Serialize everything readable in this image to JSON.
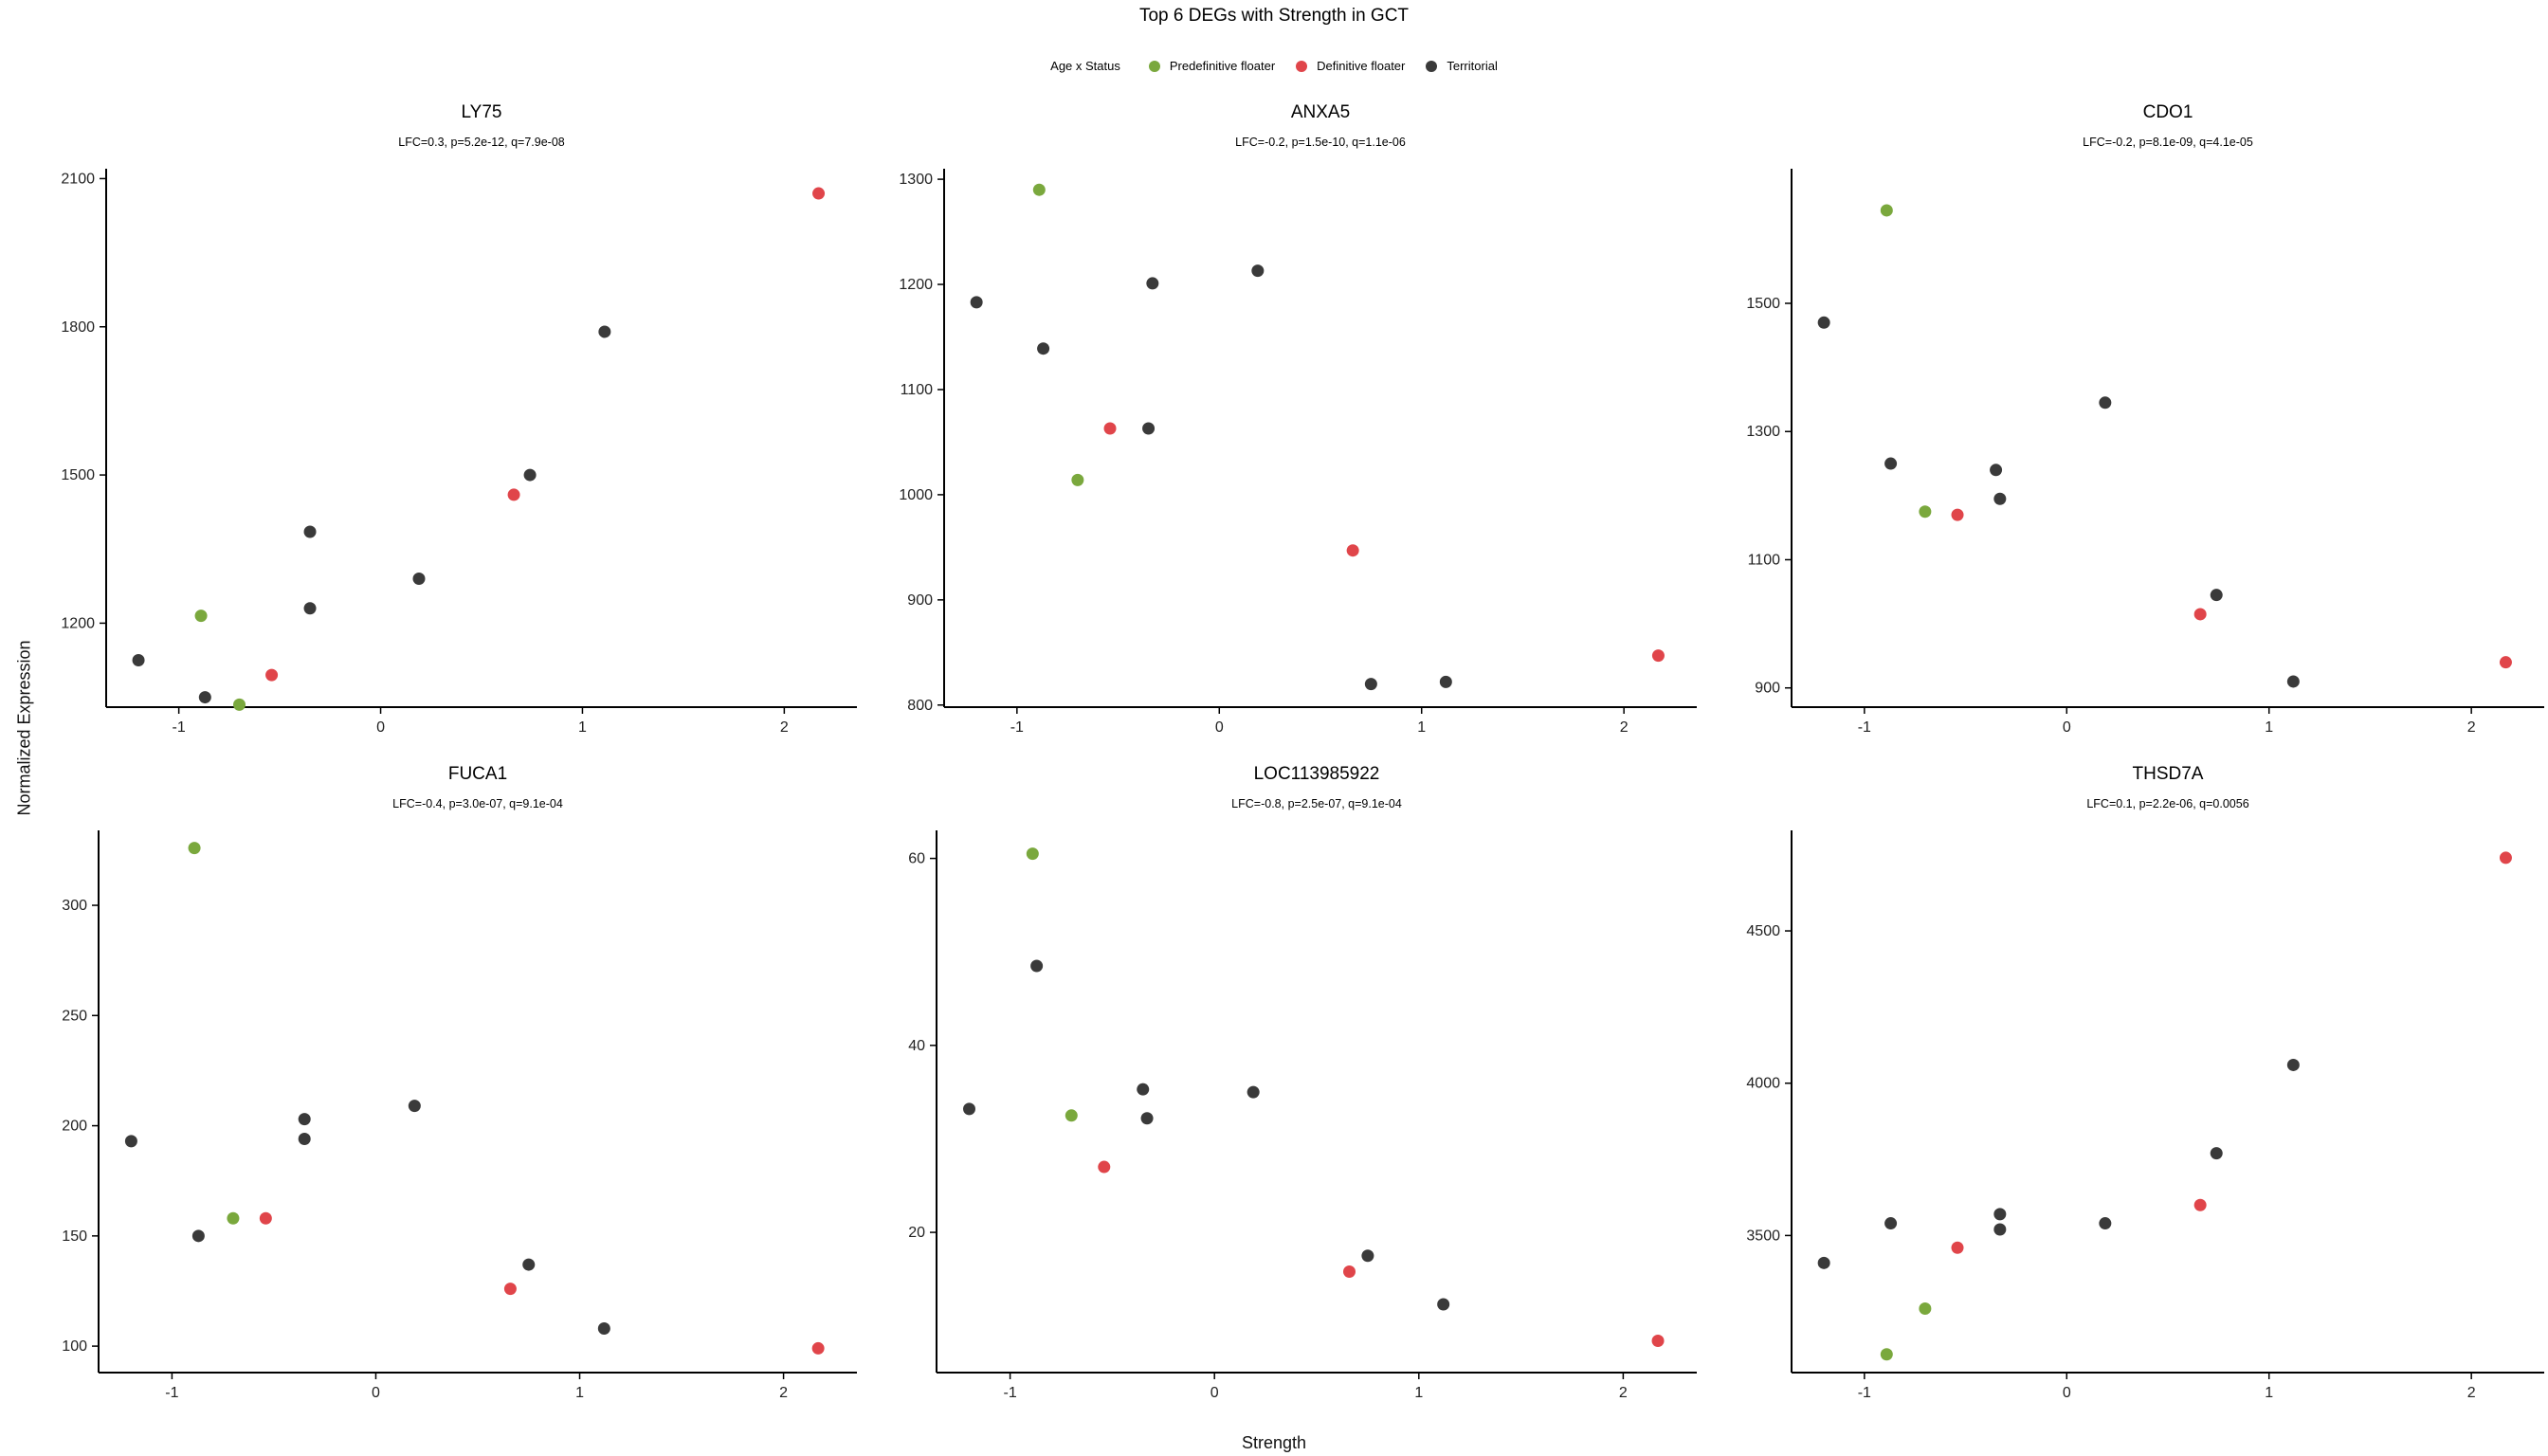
{
  "figure": {
    "title": "Top 6 DEGs with Strength in GCT",
    "xlabel": "Strength",
    "ylabel": "Normalized Expression"
  },
  "legend": {
    "title": "Age x Status",
    "items": [
      {
        "label": "Predefinitive floater",
        "color": "#7aa83d"
      },
      {
        "label": "Definitive floater",
        "color": "#e0454a"
      },
      {
        "label": "Territorial",
        "color": "#3a3a3a"
      }
    ]
  },
  "colors": {
    "Predefinitive floater": "#7aa83d",
    "Definitive floater": "#e0454a",
    "Territorial": "#3a3a3a"
  },
  "chart_data": [
    {
      "type": "scatter",
      "title": "LY75",
      "subtitle": "LFC=0.3, p=5.2e-12, q=7.9e-08",
      "xlim": [
        -1.36,
        2.36
      ],
      "ylim": [
        1030,
        2120
      ],
      "xticks": [
        -1,
        0,
        1,
        2
      ],
      "yticks": [
        1200,
        1500,
        1800,
        2100
      ],
      "points": [
        {
          "x": -1.2,
          "y": 1125,
          "group": "Territorial"
        },
        {
          "x": -0.89,
          "y": 1215,
          "group": "Predefinitive floater"
        },
        {
          "x": -0.87,
          "y": 1050,
          "group": "Territorial"
        },
        {
          "x": -0.7,
          "y": 1035,
          "group": "Predefinitive floater"
        },
        {
          "x": -0.54,
          "y": 1095,
          "group": "Definitive floater"
        },
        {
          "x": -0.35,
          "y": 1385,
          "group": "Territorial"
        },
        {
          "x": -0.35,
          "y": 1230,
          "group": "Territorial"
        },
        {
          "x": 0.19,
          "y": 1290,
          "group": "Territorial"
        },
        {
          "x": 0.66,
          "y": 1460,
          "group": "Definitive floater"
        },
        {
          "x": 0.74,
          "y": 1500,
          "group": "Territorial"
        },
        {
          "x": 1.11,
          "y": 1790,
          "group": "Territorial"
        },
        {
          "x": 2.17,
          "y": 2070,
          "group": "Definitive floater"
        }
      ]
    },
    {
      "type": "scatter",
      "title": "ANXA5",
      "subtitle": "LFC=-0.2, p=1.5e-10, q=1.1e-06",
      "xlim": [
        -1.36,
        2.36
      ],
      "ylim": [
        798,
        1310
      ],
      "xticks": [
        -1,
        0,
        1,
        2
      ],
      "yticks": [
        800,
        900,
        1000,
        1100,
        1200,
        1300
      ],
      "points": [
        {
          "x": -1.2,
          "y": 1183,
          "group": "Territorial"
        },
        {
          "x": -0.89,
          "y": 1290,
          "group": "Predefinitive floater"
        },
        {
          "x": -0.87,
          "y": 1139,
          "group": "Territorial"
        },
        {
          "x": -0.7,
          "y": 1014,
          "group": "Predefinitive floater"
        },
        {
          "x": -0.54,
          "y": 1063,
          "group": "Definitive floater"
        },
        {
          "x": -0.35,
          "y": 1063,
          "group": "Territorial"
        },
        {
          "x": -0.33,
          "y": 1201,
          "group": "Territorial"
        },
        {
          "x": 0.19,
          "y": 1213,
          "group": "Territorial"
        },
        {
          "x": 0.66,
          "y": 947,
          "group": "Definitive floater"
        },
        {
          "x": 0.75,
          "y": 820,
          "group": "Territorial"
        },
        {
          "x": 1.12,
          "y": 822,
          "group": "Territorial"
        },
        {
          "x": 2.17,
          "y": 847,
          "group": "Definitive floater"
        }
      ]
    },
    {
      "type": "scatter",
      "title": "CDO1",
      "subtitle": "LFC=-0.2, p=8.1e-09, q=4.1e-05",
      "xlim": [
        -1.36,
        2.36
      ],
      "ylim": [
        870,
        1710
      ],
      "xticks": [
        -1,
        0,
        1,
        2
      ],
      "yticks": [
        900,
        1100,
        1300,
        1500
      ],
      "points": [
        {
          "x": -1.2,
          "y": 1470,
          "group": "Territorial"
        },
        {
          "x": -0.89,
          "y": 1645,
          "group": "Predefinitive floater"
        },
        {
          "x": -0.87,
          "y": 1250,
          "group": "Territorial"
        },
        {
          "x": -0.7,
          "y": 1175,
          "group": "Predefinitive floater"
        },
        {
          "x": -0.54,
          "y": 1170,
          "group": "Definitive floater"
        },
        {
          "x": -0.35,
          "y": 1240,
          "group": "Territorial"
        },
        {
          "x": -0.33,
          "y": 1195,
          "group": "Territorial"
        },
        {
          "x": 0.19,
          "y": 1345,
          "group": "Territorial"
        },
        {
          "x": 0.66,
          "y": 1015,
          "group": "Definitive floater"
        },
        {
          "x": 0.74,
          "y": 1045,
          "group": "Territorial"
        },
        {
          "x": 1.12,
          "y": 910,
          "group": "Territorial"
        },
        {
          "x": 2.17,
          "y": 940,
          "group": "Definitive floater"
        }
      ]
    },
    {
      "type": "scatter",
      "title": "FUCA1",
      "subtitle": "LFC=-0.4, p=3.0e-07, q=9.1e-04",
      "xlim": [
        -1.36,
        2.36
      ],
      "ylim": [
        88,
        334
      ],
      "xticks": [
        -1,
        0,
        1,
        2
      ],
      "yticks": [
        100,
        150,
        200,
        250,
        300
      ],
      "points": [
        {
          "x": -1.2,
          "y": 193,
          "group": "Territorial"
        },
        {
          "x": -0.89,
          "y": 326,
          "group": "Predefinitive floater"
        },
        {
          "x": -0.87,
          "y": 150,
          "group": "Territorial"
        },
        {
          "x": -0.7,
          "y": 158,
          "group": "Predefinitive floater"
        },
        {
          "x": -0.54,
          "y": 158,
          "group": "Definitive floater"
        },
        {
          "x": -0.35,
          "y": 203,
          "group": "Territorial"
        },
        {
          "x": -0.35,
          "y": 194,
          "group": "Territorial"
        },
        {
          "x": 0.19,
          "y": 209,
          "group": "Territorial"
        },
        {
          "x": 0.66,
          "y": 126,
          "group": "Definitive floater"
        },
        {
          "x": 0.75,
          "y": 137,
          "group": "Territorial"
        },
        {
          "x": 1.12,
          "y": 108,
          "group": "Territorial"
        },
        {
          "x": 2.17,
          "y": 99,
          "group": "Definitive floater"
        }
      ]
    },
    {
      "type": "scatter",
      "title": "LOC113985922",
      "subtitle": "LFC=-0.8, p=2.5e-07, q=9.1e-04",
      "xlim": [
        -1.36,
        2.36
      ],
      "ylim": [
        5,
        63
      ],
      "xticks": [
        -1,
        0,
        1,
        2
      ],
      "yticks": [
        20,
        40,
        60
      ],
      "points": [
        {
          "x": -1.2,
          "y": 33.2,
          "group": "Territorial"
        },
        {
          "x": -0.89,
          "y": 60.5,
          "group": "Predefinitive floater"
        },
        {
          "x": -0.87,
          "y": 48.5,
          "group": "Territorial"
        },
        {
          "x": -0.7,
          "y": 32.5,
          "group": "Predefinitive floater"
        },
        {
          "x": -0.54,
          "y": 27,
          "group": "Definitive floater"
        },
        {
          "x": -0.35,
          "y": 35.3,
          "group": "Territorial"
        },
        {
          "x": -0.33,
          "y": 32.2,
          "group": "Territorial"
        },
        {
          "x": 0.19,
          "y": 35,
          "group": "Territorial"
        },
        {
          "x": 0.66,
          "y": 15.8,
          "group": "Definitive floater"
        },
        {
          "x": 0.75,
          "y": 17.5,
          "group": "Territorial"
        },
        {
          "x": 1.12,
          "y": 12.3,
          "group": "Territorial"
        },
        {
          "x": 2.17,
          "y": 8.4,
          "group": "Definitive floater"
        }
      ]
    },
    {
      "type": "scatter",
      "title": "THSD7A",
      "subtitle": "LFC=0.1, p=2.2e-06, q=0.0056",
      "xlim": [
        -1.36,
        2.36
      ],
      "ylim": [
        3050,
        4830
      ],
      "xticks": [
        -1,
        0,
        1,
        2
      ],
      "yticks": [
        3500,
        4000,
        4500
      ],
      "points": [
        {
          "x": -1.2,
          "y": 3410,
          "group": "Territorial"
        },
        {
          "x": -0.89,
          "y": 3110,
          "group": "Predefinitive floater"
        },
        {
          "x": -0.87,
          "y": 3540,
          "group": "Territorial"
        },
        {
          "x": -0.7,
          "y": 3260,
          "group": "Predefinitive floater"
        },
        {
          "x": -0.54,
          "y": 3460,
          "group": "Definitive floater"
        },
        {
          "x": -0.33,
          "y": 3570,
          "group": "Territorial"
        },
        {
          "x": -0.33,
          "y": 3520,
          "group": "Territorial"
        },
        {
          "x": 0.19,
          "y": 3540,
          "group": "Territorial"
        },
        {
          "x": 0.66,
          "y": 3600,
          "group": "Definitive floater"
        },
        {
          "x": 0.74,
          "y": 3770,
          "group": "Territorial"
        },
        {
          "x": 1.12,
          "y": 4060,
          "group": "Territorial"
        },
        {
          "x": 2.17,
          "y": 4740,
          "group": "Definitive floater"
        }
      ]
    }
  ]
}
